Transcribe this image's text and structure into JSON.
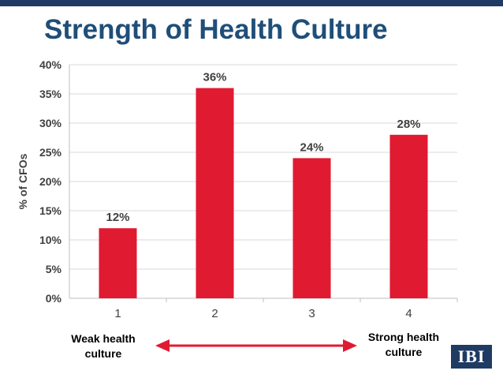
{
  "slide": {
    "title": "Strength of Health Culture",
    "left_label": "Weak health\nculture",
    "right_label": "Strong health\nculture",
    "logo_text": "IBI"
  },
  "colors": {
    "bar": "#e01a31",
    "arrow": "#e01a31",
    "title": "#1f4e79",
    "band": "#1f3b63",
    "grid": "#d9d9d9"
  },
  "chart_data": {
    "type": "bar",
    "title": "Strength of Health Culture",
    "categories": [
      "1",
      "2",
      "3",
      "4"
    ],
    "values": [
      12,
      36,
      24,
      28
    ],
    "data_labels": [
      "12%",
      "36%",
      "24%",
      "28%"
    ],
    "ylabel": "% of CFOs",
    "xlabel": "",
    "ylim": [
      0,
      40
    ],
    "yticks": [
      0,
      5,
      10,
      15,
      20,
      25,
      30,
      35,
      40
    ],
    "ytick_labels": [
      "0%",
      "5%",
      "10%",
      "15%",
      "20%",
      "25%",
      "30%",
      "35%",
      "40%"
    ],
    "grid": true,
    "legend": "none"
  }
}
